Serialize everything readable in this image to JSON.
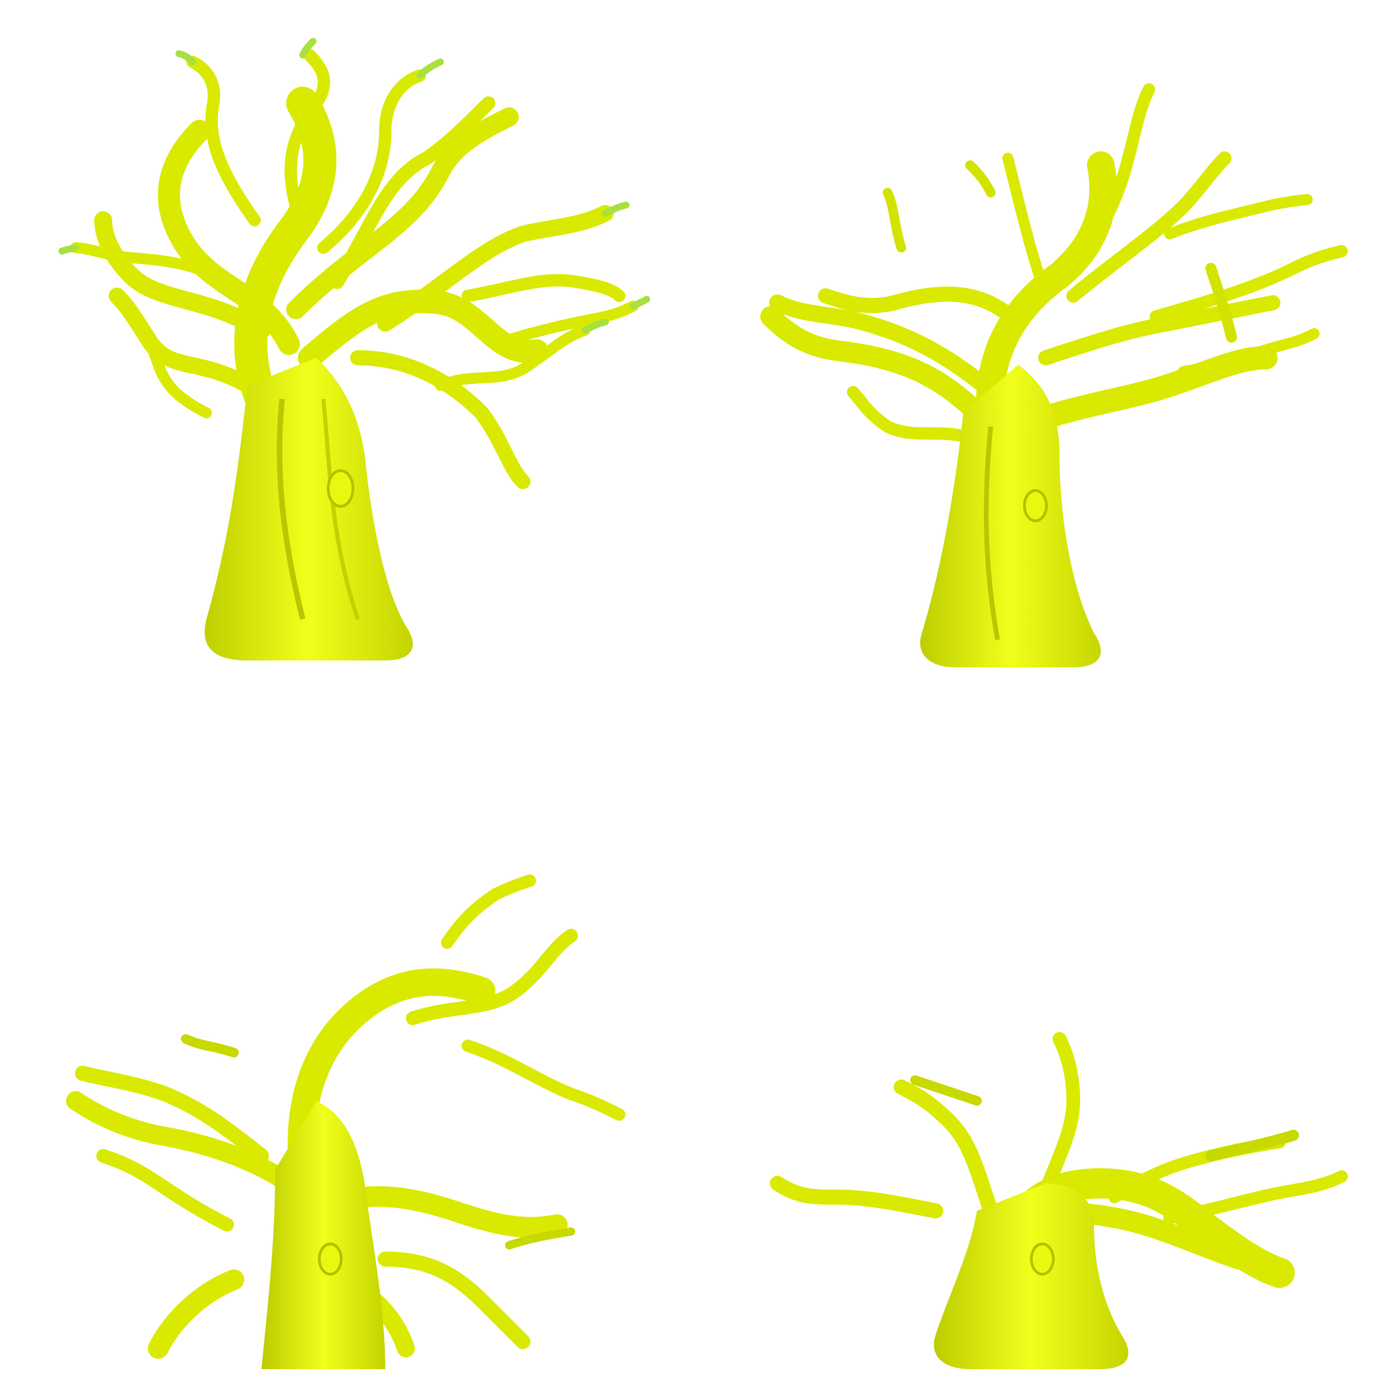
{
  "image": {
    "description_kind": "four renders of a yellow clay tree model on white background",
    "background_color": "#ffffff",
    "clay_colors": {
      "highlight": "#f0ff1a",
      "mid": "#dff000",
      "shadow": "#a9b800",
      "tip": "#9fe03a"
    },
    "panels": [
      {
        "name": "tree-front-view",
        "view": "front"
      },
      {
        "name": "tree-rotated-view",
        "view": "rotated"
      },
      {
        "name": "tree-angled-view",
        "view": "angled"
      },
      {
        "name": "tree-low-angle-view",
        "view": "low-angle"
      }
    ]
  }
}
